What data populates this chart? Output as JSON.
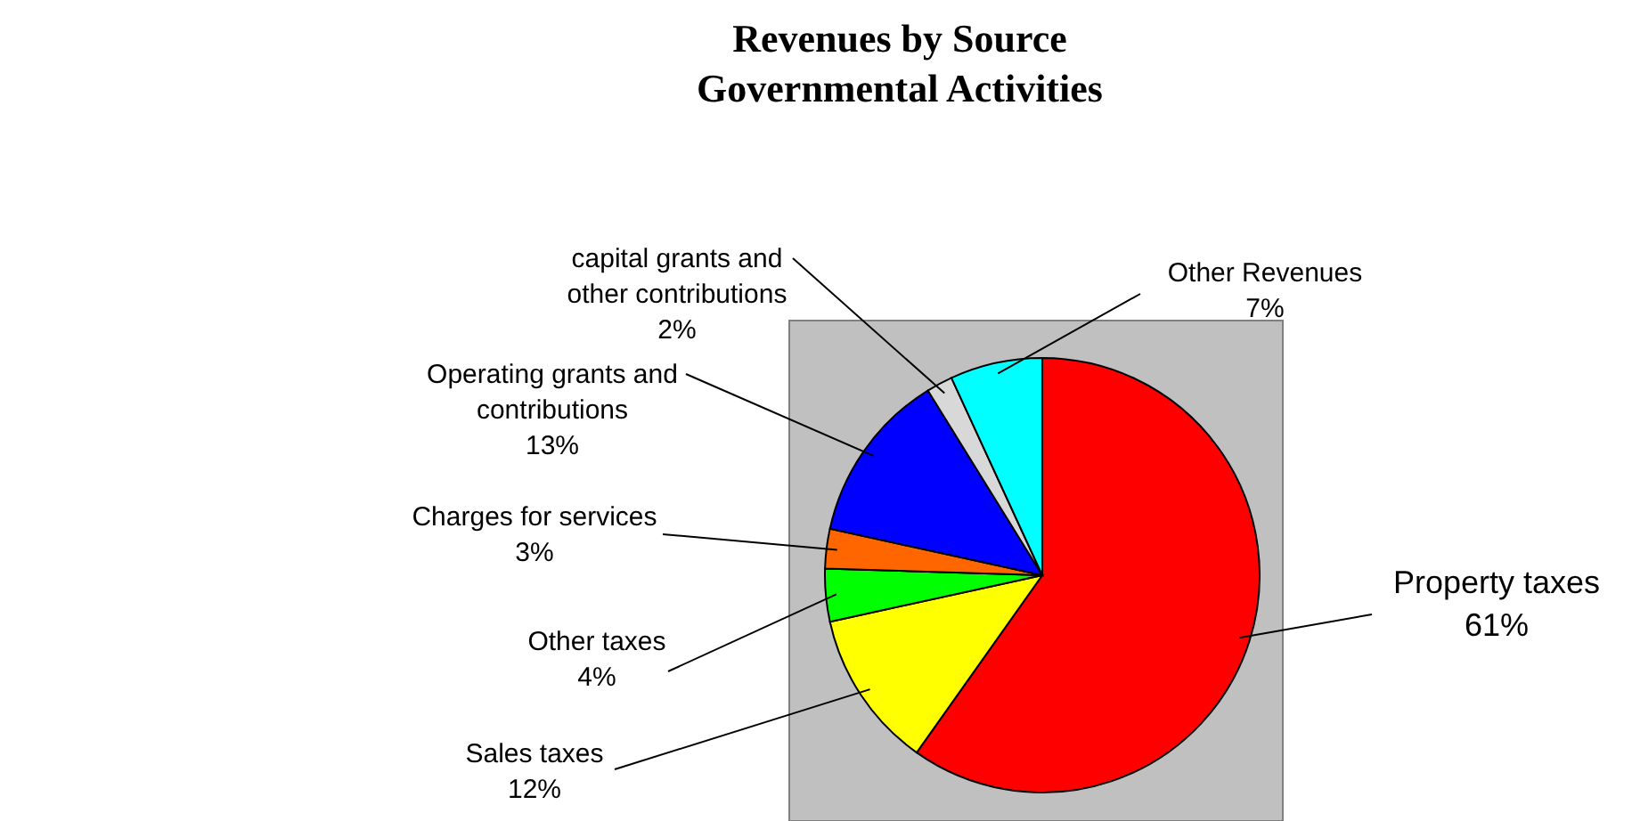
{
  "chart_data": {
    "type": "pie",
    "title": "Revenues by Source\nGovernmental Activities",
    "categories": [
      "Property taxes",
      "Sales taxes",
      "Other taxes",
      "Charges for services",
      "Operating grants and contributions",
      "capital grants and other contributions",
      "Other Revenues"
    ],
    "values": [
      61,
      12,
      4,
      3,
      13,
      2,
      7
    ],
    "value_labels": [
      "61%",
      "12%",
      "4%",
      "3%",
      "13%",
      "2%",
      "7%"
    ],
    "colors": [
      "#ff0000",
      "#ffff00",
      "#00ff00",
      "#ff6600",
      "#0000ff",
      "#d8d8d8",
      "#00ffff"
    ]
  }
}
